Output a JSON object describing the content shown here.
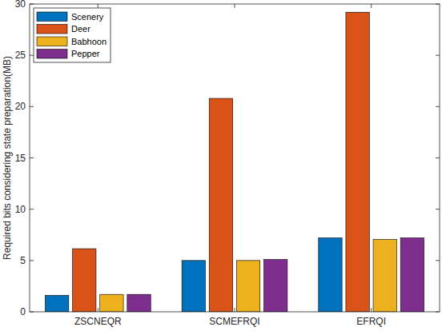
{
  "chart_data": {
    "type": "bar",
    "y_label": "Required bits considering state preparation(MB)",
    "categories": [
      "ZSCNEQR",
      "SCMEFRQI",
      "EFRQI"
    ],
    "series": [
      {
        "name": "Scenery",
        "color": "#0072BD",
        "values": [
          1.6,
          5.0,
          7.2
        ]
      },
      {
        "name": "Deer",
        "color": "#D95319",
        "values": [
          6.15,
          20.8,
          29.2
        ]
      },
      {
        "name": "Babhoon",
        "color": "#EDB120",
        "values": [
          1.7,
          5.0,
          7.05
        ]
      },
      {
        "name": "Pepper",
        "color": "#7E2F8E",
        "values": [
          1.7,
          5.1,
          7.2
        ]
      }
    ],
    "ylim": [
      0,
      30
    ],
    "yticks": [
      0,
      5,
      10,
      15,
      20,
      25,
      30
    ],
    "grid": false,
    "legend": "top-left"
  }
}
